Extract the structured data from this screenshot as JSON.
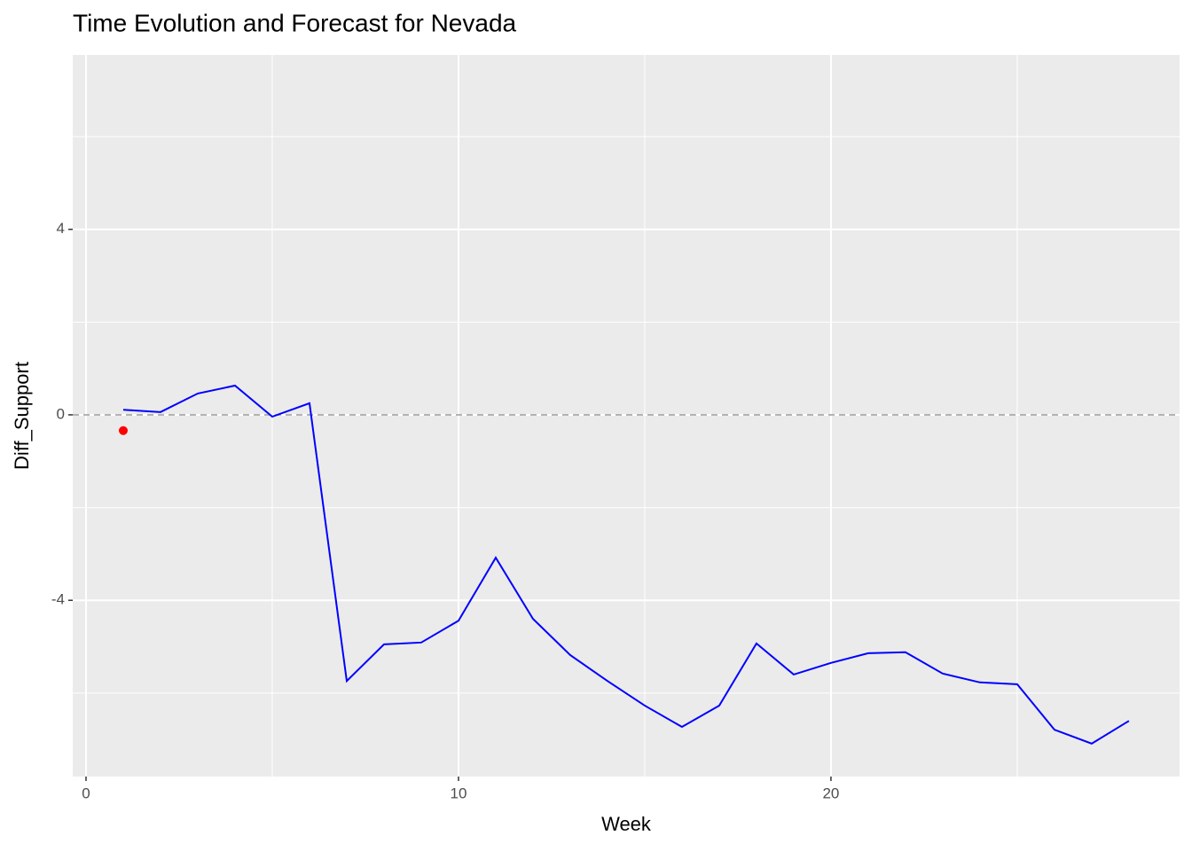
{
  "chart_data": {
    "type": "line",
    "title": "Time Evolution and Forecast for Nevada",
    "x_label": "Week",
    "y_label": "Diff_Support",
    "xlim": [
      -0.357,
      29.36
    ],
    "ylim": [
      -7.8,
      7.76
    ],
    "xticks": [
      0,
      10,
      20
    ],
    "yticks": [
      -4,
      0,
      4
    ],
    "x_minor_ticks": [
      5,
      15,
      25
    ],
    "y_minor_ticks": [
      -6,
      -2,
      2,
      6
    ],
    "grid": true,
    "series": [
      {
        "color": "#0000ff",
        "x": [
          1,
          2,
          3,
          4,
          5,
          6,
          7,
          8,
          9,
          10,
          11,
          12,
          13,
          14,
          15,
          16,
          17,
          18,
          19,
          20,
          21,
          22,
          23,
          24,
          25,
          26,
          27,
          28
        ],
        "values": [
          0.11,
          0.06,
          0.46,
          0.63,
          -0.04,
          0.25,
          -5.74,
          -4.95,
          -4.91,
          -4.44,
          -3.08,
          -4.4,
          -5.18,
          -5.74,
          -6.27,
          -6.73,
          -6.27,
          -4.93,
          -5.6,
          -5.35,
          -5.14,
          -5.12,
          -5.58,
          -5.77,
          -5.81,
          -6.79,
          -7.09,
          -6.6
        ]
      }
    ],
    "points": {
      "color": "#ff0000",
      "x": [
        1
      ],
      "values": [
        -0.34
      ]
    },
    "hline": {
      "value": 0,
      "color": "#b3b3b3",
      "dashed": true
    }
  }
}
